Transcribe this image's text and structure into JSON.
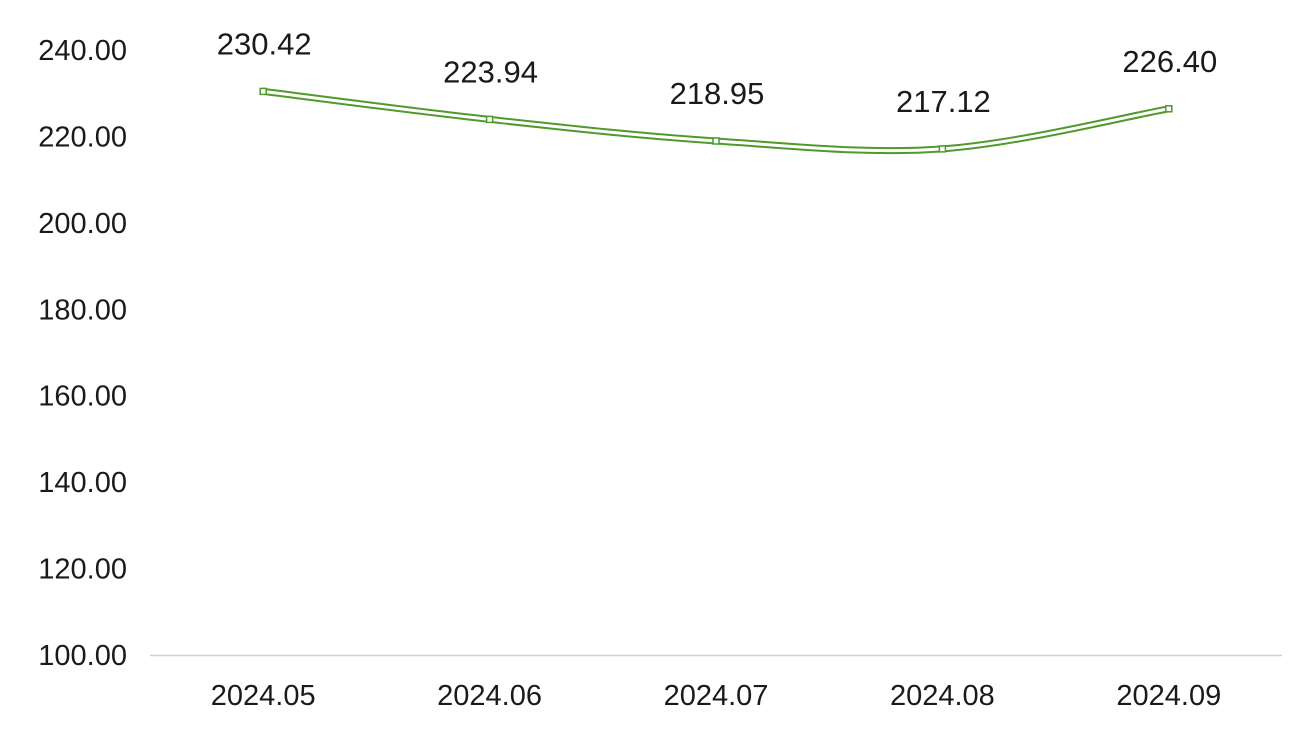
{
  "chart_data": {
    "type": "line",
    "categories": [
      "2024.05",
      "2024.06",
      "2024.07",
      "2024.08",
      "2024.09"
    ],
    "series": [
      {
        "values": [
          230.42,
          223.94,
          218.95,
          217.12,
          226.4
        ]
      }
    ],
    "data_labels": [
      "230.42",
      "223.94",
      "218.95",
      "217.12",
      "226.40"
    ],
    "y_ticks": [
      "100.00",
      "120.00",
      "140.00",
      "160.00",
      "180.00",
      "200.00",
      "220.00",
      "240.00"
    ],
    "ylim": [
      100,
      240
    ],
    "grid": false,
    "smooth": true,
    "line_color": "#4f9a2b",
    "axis_color": "#d0d0d0"
  }
}
